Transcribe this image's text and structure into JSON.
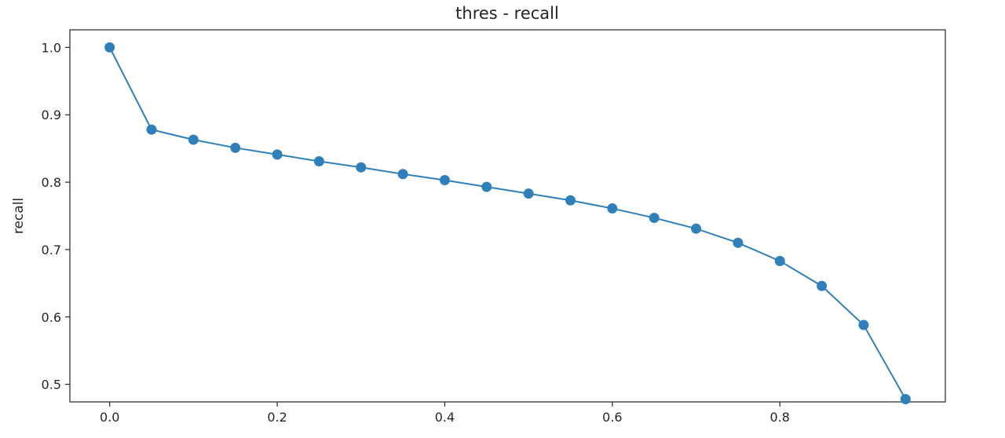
{
  "colors": {
    "series": "#2f7fba",
    "axis": "#262626",
    "background": "#ffffff"
  },
  "chart_data": {
    "type": "line",
    "title": "thres - recall",
    "xlabel": "",
    "ylabel": "recall",
    "xlim": [
      -0.0475,
      0.9975
    ],
    "ylim": [
      0.4739,
      1.0261
    ],
    "grid": false,
    "legend": "none",
    "x_ticks": [
      {
        "value": 0.0,
        "label": "0.0"
      },
      {
        "value": 0.2,
        "label": "0.2"
      },
      {
        "value": 0.4,
        "label": "0.4"
      },
      {
        "value": 0.6,
        "label": "0.6"
      },
      {
        "value": 0.8,
        "label": "0.8"
      }
    ],
    "y_ticks": [
      {
        "value": 0.5,
        "label": "0.5"
      },
      {
        "value": 0.6,
        "label": "0.6"
      },
      {
        "value": 0.7,
        "label": "0.7"
      },
      {
        "value": 0.8,
        "label": "0.8"
      },
      {
        "value": 0.9,
        "label": "0.9"
      },
      {
        "value": 1.0,
        "label": "1.0"
      }
    ],
    "series": [
      {
        "marker": "circle",
        "x": [
          0.0,
          0.05,
          0.1,
          0.15,
          0.2,
          0.25,
          0.3,
          0.35,
          0.4,
          0.45,
          0.5,
          0.55,
          0.6,
          0.65,
          0.7,
          0.75,
          0.8,
          0.85,
          0.9,
          0.95
        ],
        "y": [
          1.0,
          0.878,
          0.863,
          0.851,
          0.841,
          0.831,
          0.822,
          0.812,
          0.803,
          0.793,
          0.783,
          0.773,
          0.761,
          0.747,
          0.731,
          0.71,
          0.683,
          0.646,
          0.588,
          0.478
        ]
      }
    ]
  }
}
